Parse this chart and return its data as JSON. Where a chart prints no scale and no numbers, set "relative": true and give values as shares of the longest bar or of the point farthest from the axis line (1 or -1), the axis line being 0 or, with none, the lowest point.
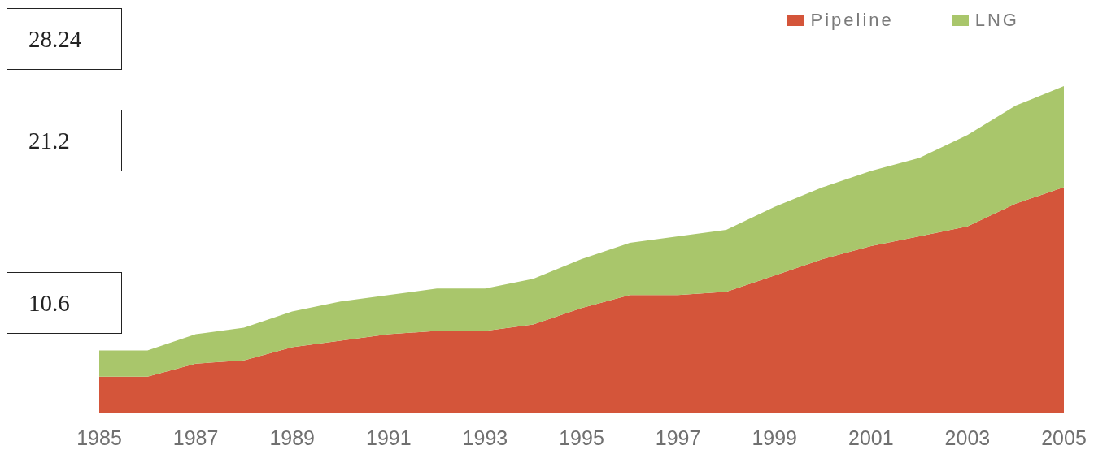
{
  "chart_data": {
    "type": "area",
    "stacked": true,
    "relative": true,
    "x": [
      1985,
      1986,
      1987,
      1988,
      1989,
      1990,
      1991,
      1992,
      1993,
      1994,
      1995,
      1996,
      1997,
      1998,
      1999,
      2000,
      2001,
      2002,
      2003,
      2004,
      2005
    ],
    "xlim": [
      1985,
      2005
    ],
    "xticks": [
      1985,
      1987,
      1989,
      1991,
      1993,
      1995,
      1997,
      1999,
      2001,
      2003,
      2005
    ],
    "series": [
      {
        "name": "Pipeline",
        "color": "#d4553a",
        "values": [
          0.11,
          0.11,
          0.15,
          0.16,
          0.2,
          0.22,
          0.24,
          0.25,
          0.25,
          0.27,
          0.32,
          0.36,
          0.36,
          0.37,
          0.42,
          0.47,
          0.51,
          0.54,
          0.57,
          0.64,
          0.69
        ]
      },
      {
        "name": "LNG",
        "color": "#a9c66b",
        "values": [
          0.08,
          0.08,
          0.09,
          0.1,
          0.11,
          0.12,
          0.12,
          0.13,
          0.13,
          0.14,
          0.15,
          0.16,
          0.18,
          0.19,
          0.21,
          0.22,
          0.23,
          0.24,
          0.28,
          0.3,
          0.31
        ]
      }
    ],
    "legend": "top right",
    "annotations": [
      "28.24",
      "21.2",
      "10.6"
    ]
  }
}
